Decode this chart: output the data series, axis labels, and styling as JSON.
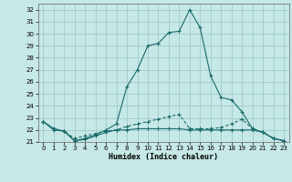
{
  "background_color": "#c6e8e6",
  "grid_color": "#a0ccca",
  "line_color": "#1a6b6b",
  "xlabel": "Humidex (Indice chaleur)",
  "xlim": [
    -0.5,
    23.5
  ],
  "ylim": [
    21,
    32.5
  ],
  "yticks": [
    21,
    22,
    23,
    24,
    25,
    26,
    27,
    28,
    29,
    30,
    31,
    32
  ],
  "xticks": [
    0,
    1,
    2,
    3,
    4,
    5,
    6,
    7,
    8,
    9,
    10,
    11,
    12,
    13,
    14,
    15,
    16,
    17,
    18,
    19,
    20,
    21,
    22,
    23
  ],
  "series1_x": [
    0,
    1,
    2,
    3,
    4,
    5,
    6,
    7,
    8,
    9,
    10,
    11,
    12,
    13,
    14,
    15,
    16,
    17,
    18,
    19,
    20,
    21,
    22,
    23
  ],
  "series1_y": [
    22.7,
    22.1,
    21.9,
    21.1,
    21.3,
    21.6,
    22.0,
    22.5,
    25.6,
    27.0,
    29.0,
    29.2,
    30.1,
    30.2,
    32.0,
    30.5,
    26.5,
    24.7,
    24.5,
    23.5,
    22.1,
    21.8,
    21.3,
    21.1
  ],
  "series2_x": [
    0,
    1,
    2,
    3,
    4,
    5,
    6,
    7,
    8,
    9,
    10,
    11,
    12,
    13,
    14,
    15,
    16,
    17,
    18,
    19,
    20,
    21,
    22,
    23
  ],
  "series2_y": [
    22.7,
    22.1,
    21.9,
    21.3,
    21.5,
    21.7,
    21.9,
    22.0,
    22.3,
    22.5,
    22.7,
    22.9,
    23.1,
    23.3,
    22.1,
    22.1,
    22.1,
    22.2,
    22.5,
    22.9,
    22.1,
    21.8,
    21.3,
    21.1
  ],
  "series3_x": [
    0,
    1,
    2,
    3,
    4,
    5,
    6,
    7,
    8,
    9,
    10,
    11,
    12,
    13,
    14,
    15,
    16,
    17,
    18,
    19,
    20,
    21,
    22,
    23
  ],
  "series3_y": [
    22.7,
    22.0,
    21.9,
    21.1,
    21.2,
    21.5,
    21.8,
    22.0,
    22.0,
    22.1,
    22.1,
    22.1,
    22.1,
    22.1,
    22.0,
    22.0,
    22.0,
    22.0,
    22.0,
    22.0,
    22.0,
    21.8,
    21.3,
    21.1
  ]
}
